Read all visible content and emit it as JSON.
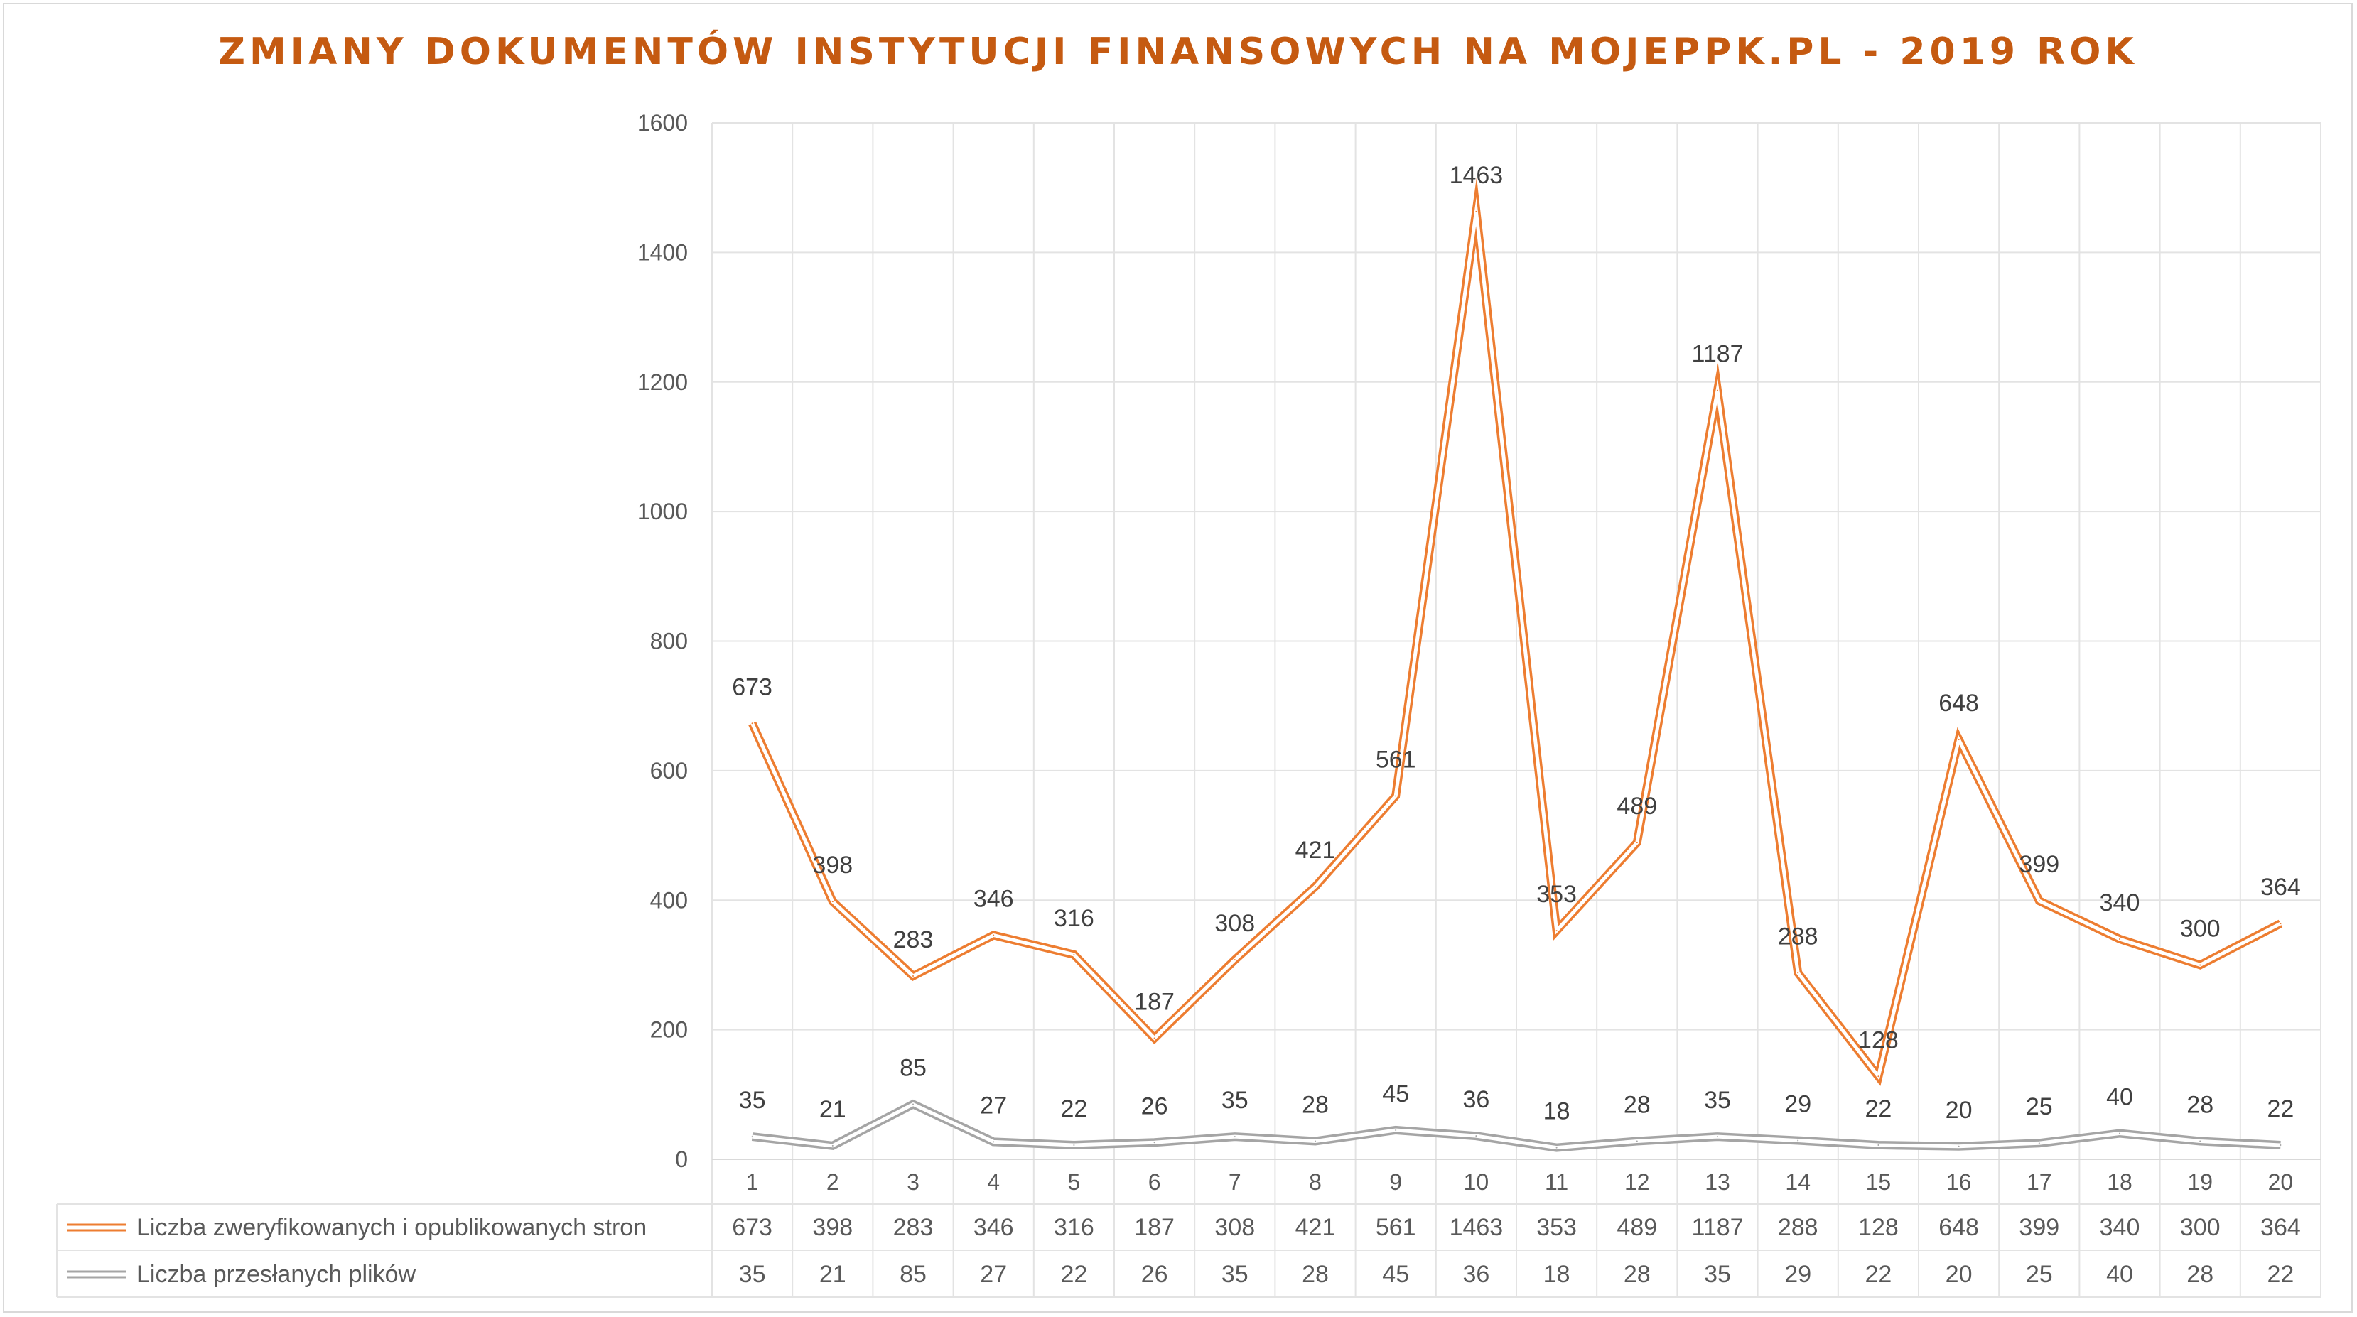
{
  "chart_data": {
    "type": "line",
    "title": "ZMIANY DOKUMENTÓW INSTYTUCJI FINANSOWYCH NA MOJEPPK.PL - 2019 ROK",
    "categories": [
      "1",
      "2",
      "3",
      "4",
      "5",
      "6",
      "7",
      "8",
      "9",
      "10",
      "11",
      "12",
      "13",
      "14",
      "15",
      "16",
      "17",
      "18",
      "19",
      "20"
    ],
    "ylim": [
      0,
      1600
    ],
    "yticks": [
      0,
      200,
      400,
      600,
      800,
      1000,
      1200,
      1400,
      1600
    ],
    "grid": true,
    "legend": "data-table-bottom",
    "series": [
      {
        "name": "Liczba zweryfikowanych i opublikowanych stron",
        "color": "#ed7d31",
        "values": [
          673,
          398,
          283,
          346,
          316,
          187,
          308,
          421,
          561,
          1463,
          353,
          489,
          1187,
          288,
          128,
          648,
          399,
          340,
          300,
          364
        ]
      },
      {
        "name": "Liczba przesłanych plików",
        "color": "#a5a5a5",
        "values": [
          35,
          21,
          85,
          27,
          22,
          26,
          35,
          28,
          45,
          36,
          18,
          28,
          35,
          29,
          22,
          20,
          25,
          40,
          28,
          22
        ]
      }
    ]
  }
}
